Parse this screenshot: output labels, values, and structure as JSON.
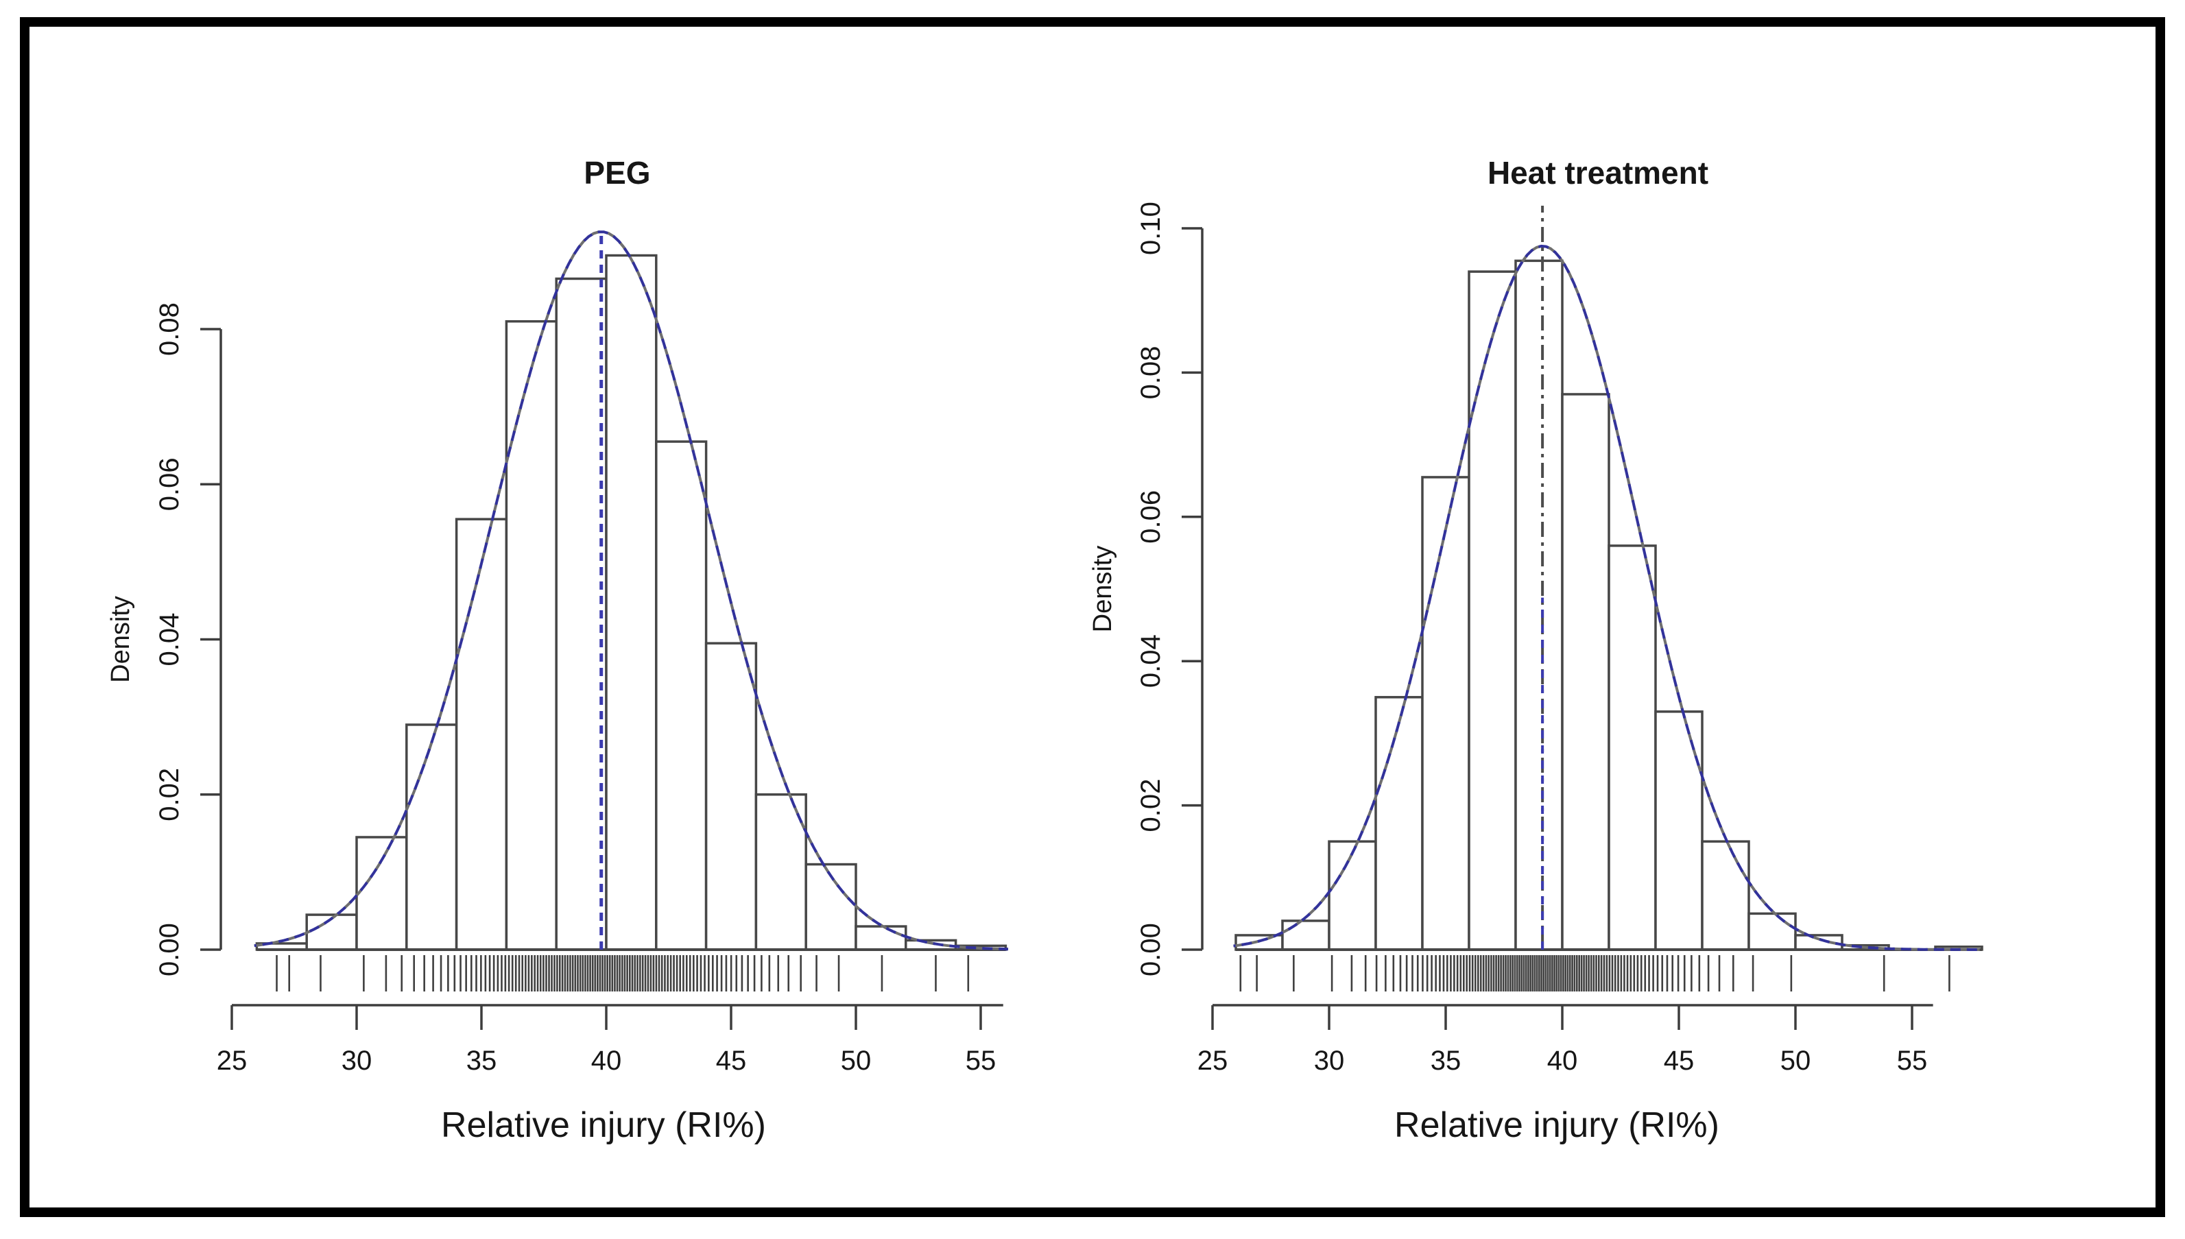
{
  "figure": {
    "background": "#ffffff",
    "frame_color": "#000000",
    "axis_color": "#3d3d3d",
    "bar_fill": "#ffffff",
    "bar_stroke": "#474747",
    "curve_color_blue": "#32329b",
    "curve_color_gray": "#6f6f6f",
    "mean_line_blue": "#3b3bb0",
    "mean_line_gray": "#4c4c4c",
    "rug_color": "#3f3f3f",
    "text_color": "#161616"
  },
  "chart_data": [
    {
      "type": "histogram",
      "title": "PEG",
      "xlabel": "Relative injury (RI%)",
      "ylabel": "Density",
      "xlim": [
        25,
        56
      ],
      "ylim": [
        0,
        0.095
      ],
      "grid": false,
      "legend": "none",
      "xticks": [
        25,
        30,
        35,
        40,
        45,
        50,
        55
      ],
      "yticks": [
        0.0,
        0.02,
        0.04,
        0.06,
        0.08
      ],
      "ytick_labels": [
        "0.00",
        "0.02",
        "0.04",
        "0.06",
        "0.08"
      ],
      "bin_start": 26,
      "bin_width": 2,
      "bar_heights": [
        0.0008,
        0.0045,
        0.0145,
        0.029,
        0.0555,
        0.081,
        0.0865,
        0.0895,
        0.0655,
        0.0395,
        0.02,
        0.011,
        0.003,
        0.0012,
        0.0005
      ],
      "normal_curve": {
        "mean": 39.8,
        "sd": 4.31,
        "peak_density": 0.0926,
        "x_from": 25.9,
        "x_to": 56.2,
        "style": "dashed"
      },
      "mean_line": {
        "x": 39.8,
        "style": "dashed-blue",
        "to_top": false
      },
      "rug": {
        "n": 110,
        "extra_points": [
          26.8,
          27.3,
          53.2,
          54.5
        ]
      }
    },
    {
      "type": "histogram",
      "title": "Heat treatment",
      "xlabel": "Relative injury (RI%)",
      "ylabel": "Density",
      "xlim": [
        25,
        58
      ],
      "ylim": [
        0,
        0.103
      ],
      "grid": false,
      "legend": "none",
      "xticks": [
        25,
        30,
        35,
        40,
        45,
        50,
        55
      ],
      "yticks": [
        0.0,
        0.02,
        0.04,
        0.06,
        0.08,
        0.1
      ],
      "ytick_labels": [
        "0.00",
        "0.02",
        "0.04",
        "0.06",
        "0.08",
        "0.10"
      ],
      "bin_start": 26,
      "bin_width": 2,
      "bar_heights": [
        0.002,
        0.004,
        0.015,
        0.035,
        0.0655,
        0.094,
        0.0955,
        0.077,
        0.056,
        0.033,
        0.015,
        0.005,
        0.002,
        0.0006,
        0.0,
        0.0004
      ],
      "normal_curve": {
        "mean": 39.15,
        "sd": 4.09,
        "peak_density": 0.0976,
        "x_from": 25.9,
        "x_to": 57.9,
        "style": "dashed"
      },
      "mean_line": {
        "x": 39.15,
        "style": "dash-dot-gray-blue",
        "to_top": true
      },
      "rug": {
        "n": 110,
        "extra_points": [
          26.2,
          26.9,
          53.8,
          56.6
        ]
      }
    }
  ]
}
